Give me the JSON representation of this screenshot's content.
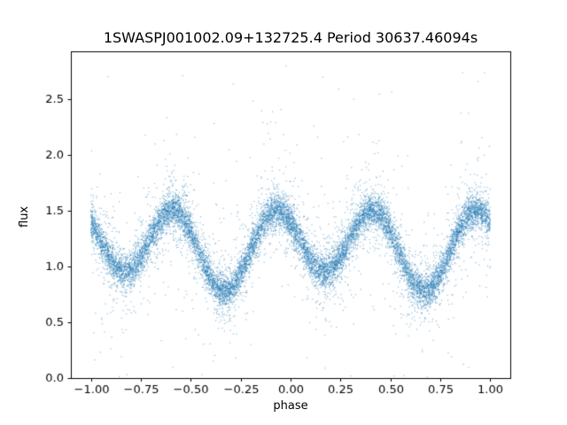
{
  "figure": {
    "background": "#ffffff",
    "spine_color": "#000000",
    "text_color": "#000000"
  },
  "chart_data": {
    "type": "scatter",
    "title": "1SWASPJ001002.09+132725.4 Period 30637.46094s",
    "xlabel": "phase",
    "ylabel": "flux",
    "xlim": [
      -1.1,
      1.1
    ],
    "ylim": [
      0.0,
      2.93
    ],
    "grid": false,
    "legend": null,
    "xticks": [
      {
        "value": -1.0,
        "label": "−1.00"
      },
      {
        "value": -0.75,
        "label": "−0.75"
      },
      {
        "value": -0.5,
        "label": "−0.50"
      },
      {
        "value": -0.25,
        "label": "−0.25"
      },
      {
        "value": 0.0,
        "label": "0.00"
      },
      {
        "value": 0.25,
        "label": "0.25"
      },
      {
        "value": 0.5,
        "label": "0.50"
      },
      {
        "value": 0.75,
        "label": "0.75"
      },
      {
        "value": 1.0,
        "label": "1.00"
      }
    ],
    "yticks": [
      {
        "value": 0.0,
        "label": "0.0"
      },
      {
        "value": 0.5,
        "label": "0.5"
      },
      {
        "value": 1.0,
        "label": "1.0"
      },
      {
        "value": 1.5,
        "label": "1.5"
      },
      {
        "value": 2.0,
        "label": "2.0"
      },
      {
        "value": 2.5,
        "label": "2.5"
      }
    ],
    "marker_color": "#1f77b4",
    "marker_rgba": "rgba(31,119,180,0.5)",
    "marker_size_px": 1.2,
    "phase_range": [
      -1.0,
      1.0
    ],
    "n_points": 14000,
    "model": {
      "description": "Phase-folded eclipsing-binary light curve: flux(phase) = mean + sum(amp*cos(2*pi*freq*(phase-phase0))). Double-humped wave, period 0.5 in phase, alternating deep/shallow minima.",
      "mean": 1.1825,
      "terms": [
        {
          "amp": 0.3175,
          "freq": 2,
          "phase0": 0.42
        },
        {
          "amp": -0.085,
          "freq": 1,
          "phase0": 0.67
        }
      ],
      "peaks_phase": [
        -0.58,
        -0.08,
        0.42,
        0.92
      ],
      "peak_flux": 1.5,
      "deep_minima_phase": [
        -0.33,
        0.67
      ],
      "deep_minimum_flux": 0.78,
      "shallow_minima_phase": [
        -0.83,
        0.17
      ],
      "shallow_minimum_flux": 0.95,
      "edge_flux_at_phase_1": 1.4
    },
    "noise_mixture": [
      {
        "frac": 0.75,
        "sigma": 0.07
      },
      {
        "frac": 0.19,
        "sigma": 0.17
      },
      {
        "frac": 0.06,
        "sigma": 0.45
      }
    ],
    "outliers": {
      "frac": 0.0035,
      "flux_min": 0.05,
      "flux_max": 2.8
    },
    "seed": 20240001
  }
}
